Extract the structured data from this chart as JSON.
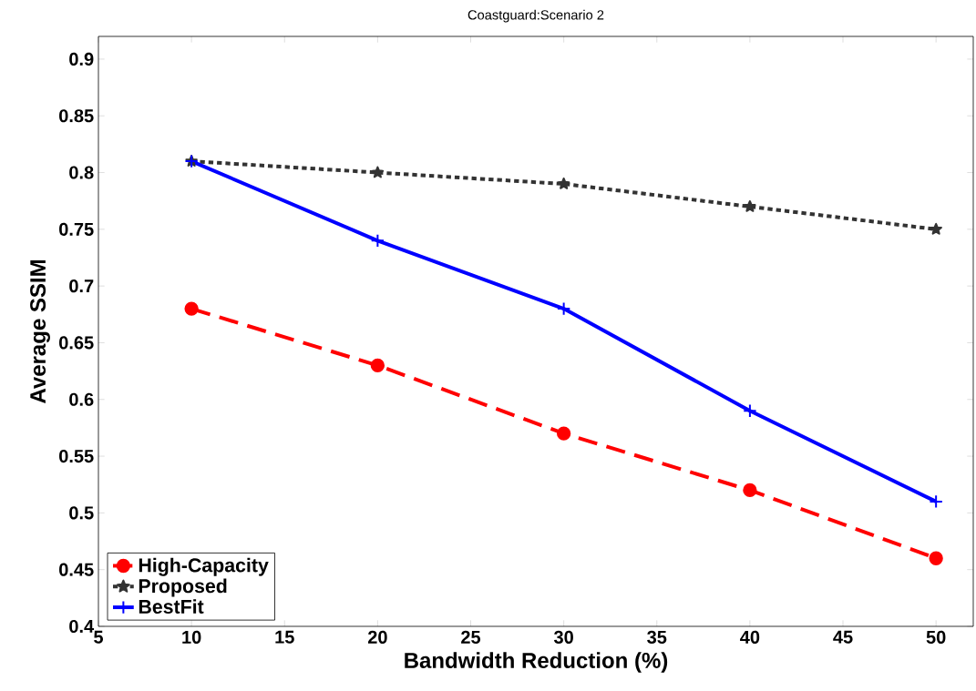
{
  "chart_data": {
    "type": "line",
    "title": "Coastguard:Scenario 2",
    "xlabel": "Bandwidth Reduction (%)",
    "ylabel": "Average SSIM",
    "x": [
      10,
      20,
      30,
      40,
      50
    ],
    "series": [
      {
        "name": "High-Capacity",
        "color": "#ff0000",
        "values": [
          0.68,
          0.63,
          0.57,
          0.52,
          0.46
        ],
        "marker": "circle",
        "line_style": "dashed"
      },
      {
        "name": "Proposed",
        "color": "#333333",
        "values": [
          0.81,
          0.8,
          0.79,
          0.77,
          0.75
        ],
        "marker": "star",
        "line_style": "dotted"
      },
      {
        "name": "BestFit",
        "color": "#0000ff",
        "values": [
          0.81,
          0.74,
          0.68,
          0.59,
          0.51
        ],
        "marker": "cross",
        "line_style": "solid"
      }
    ],
    "xlim": [
      5,
      52
    ],
    "ylim": [
      0.4,
      0.92
    ],
    "xticks": [
      5,
      10,
      15,
      20,
      25,
      30,
      35,
      40,
      45,
      50
    ],
    "yticks": [
      0.4,
      0.45,
      0.5,
      0.55,
      0.6,
      0.65,
      0.7,
      0.75,
      0.8,
      0.85,
      0.9
    ],
    "legend": "bottom left"
  }
}
